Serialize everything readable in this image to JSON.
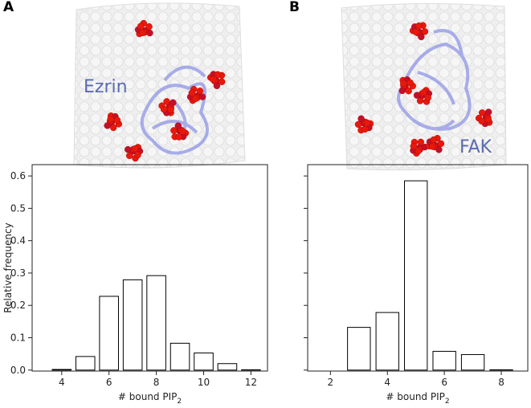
{
  "chart_data": [
    {
      "type": "bar",
      "panel_label": "A",
      "image_label": "Ezrin",
      "ylabel": "Relative frequency",
      "xlabel": "# bound PIP",
      "xlabel_subscript": "2",
      "x": [
        4,
        5,
        6,
        7,
        8,
        9,
        10,
        11,
        12
      ],
      "values": [
        0.002,
        0.042,
        0.228,
        0.279,
        0.292,
        0.083,
        0.053,
        0.02,
        0.001
      ],
      "color": "#ffffff",
      "edgecolor": "#000000",
      "xlim": [
        2.75,
        12.7
      ],
      "xticks": [
        4,
        6,
        8,
        10,
        12
      ],
      "ylim": [
        -0.003,
        0.635
      ],
      "yticks": [
        {
          "value": 0,
          "label": "0.0"
        },
        {
          "value": 0.1,
          "label": "0.1"
        },
        {
          "value": 0.2,
          "label": "0.2"
        },
        {
          "value": 0.3,
          "label": "0.3"
        },
        {
          "value": 0.4,
          "label": "0.4"
        },
        {
          "value": 0.5,
          "label": "0.5"
        },
        {
          "value": 0.6,
          "label": "0.6"
        }
      ]
    },
    {
      "type": "bar",
      "panel_label": "B",
      "image_label": "FAK",
      "xlabel": "# bound PIP",
      "xlabel_subscript": "2",
      "x": [
        2,
        3,
        4,
        5,
        6,
        7,
        8
      ],
      "values": [
        0,
        0.132,
        0.178,
        0.585,
        0.058,
        0.048,
        0.001
      ],
      "color": "#ffffff",
      "edgecolor": "#000000",
      "xlim": [
        1.2,
        8.93
      ],
      "xticks": [
        2,
        4,
        6,
        8
      ],
      "ylim": [
        -0.003,
        0.635
      ],
      "yticks": [
        0,
        0.1,
        0.2,
        0.3,
        0.4,
        0.5,
        0.6
      ]
    }
  ]
}
